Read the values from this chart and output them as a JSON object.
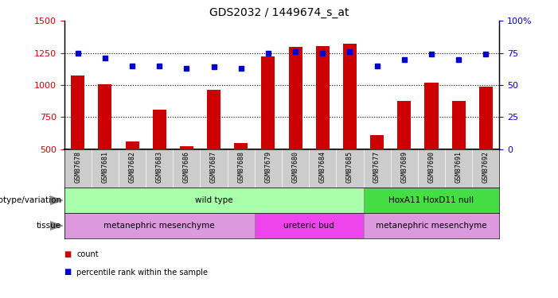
{
  "title": "GDS2032 / 1449674_s_at",
  "samples": [
    "GSM87678",
    "GSM87681",
    "GSM87682",
    "GSM87683",
    "GSM87686",
    "GSM87687",
    "GSM87688",
    "GSM87679",
    "GSM87680",
    "GSM87684",
    "GSM87685",
    "GSM87677",
    "GSM87689",
    "GSM87690",
    "GSM87691",
    "GSM87692"
  ],
  "counts": [
    1075,
    1005,
    560,
    810,
    520,
    960,
    545,
    1220,
    1295,
    1305,
    1320,
    610,
    875,
    1020,
    875,
    985
  ],
  "percentiles": [
    75,
    71,
    65,
    65,
    63,
    64,
    63,
    75,
    76,
    75,
    76,
    65,
    70,
    74,
    70,
    74
  ],
  "bar_color": "#cc0000",
  "dot_color": "#0000cc",
  "ylim_left": [
    500,
    1500
  ],
  "ylim_right": [
    0,
    100
  ],
  "yticks_left": [
    500,
    750,
    1000,
    1250,
    1500
  ],
  "yticks_right": [
    0,
    25,
    50,
    75,
    100
  ],
  "hlines": [
    750,
    1000,
    1250
  ],
  "genotype_groups": [
    {
      "label": "wild type",
      "start": 0,
      "end": 10,
      "color": "#aaffaa"
    },
    {
      "label": "HoxA11 HoxD11 null",
      "start": 11,
      "end": 15,
      "color": "#44dd44"
    }
  ],
  "tissue_groups": [
    {
      "label": "metanephric mesenchyme",
      "start": 0,
      "end": 6,
      "color": "#dd99dd"
    },
    {
      "label": "ureteric bud",
      "start": 7,
      "end": 10,
      "color": "#ee44ee"
    },
    {
      "label": "metanephric mesenchyme",
      "start": 11,
      "end": 15,
      "color": "#dd99dd"
    }
  ],
  "tick_color_left": "#cc0000",
  "tick_color_right": "#0000cc",
  "bar_width": 0.5,
  "label_bg": "#cccccc"
}
